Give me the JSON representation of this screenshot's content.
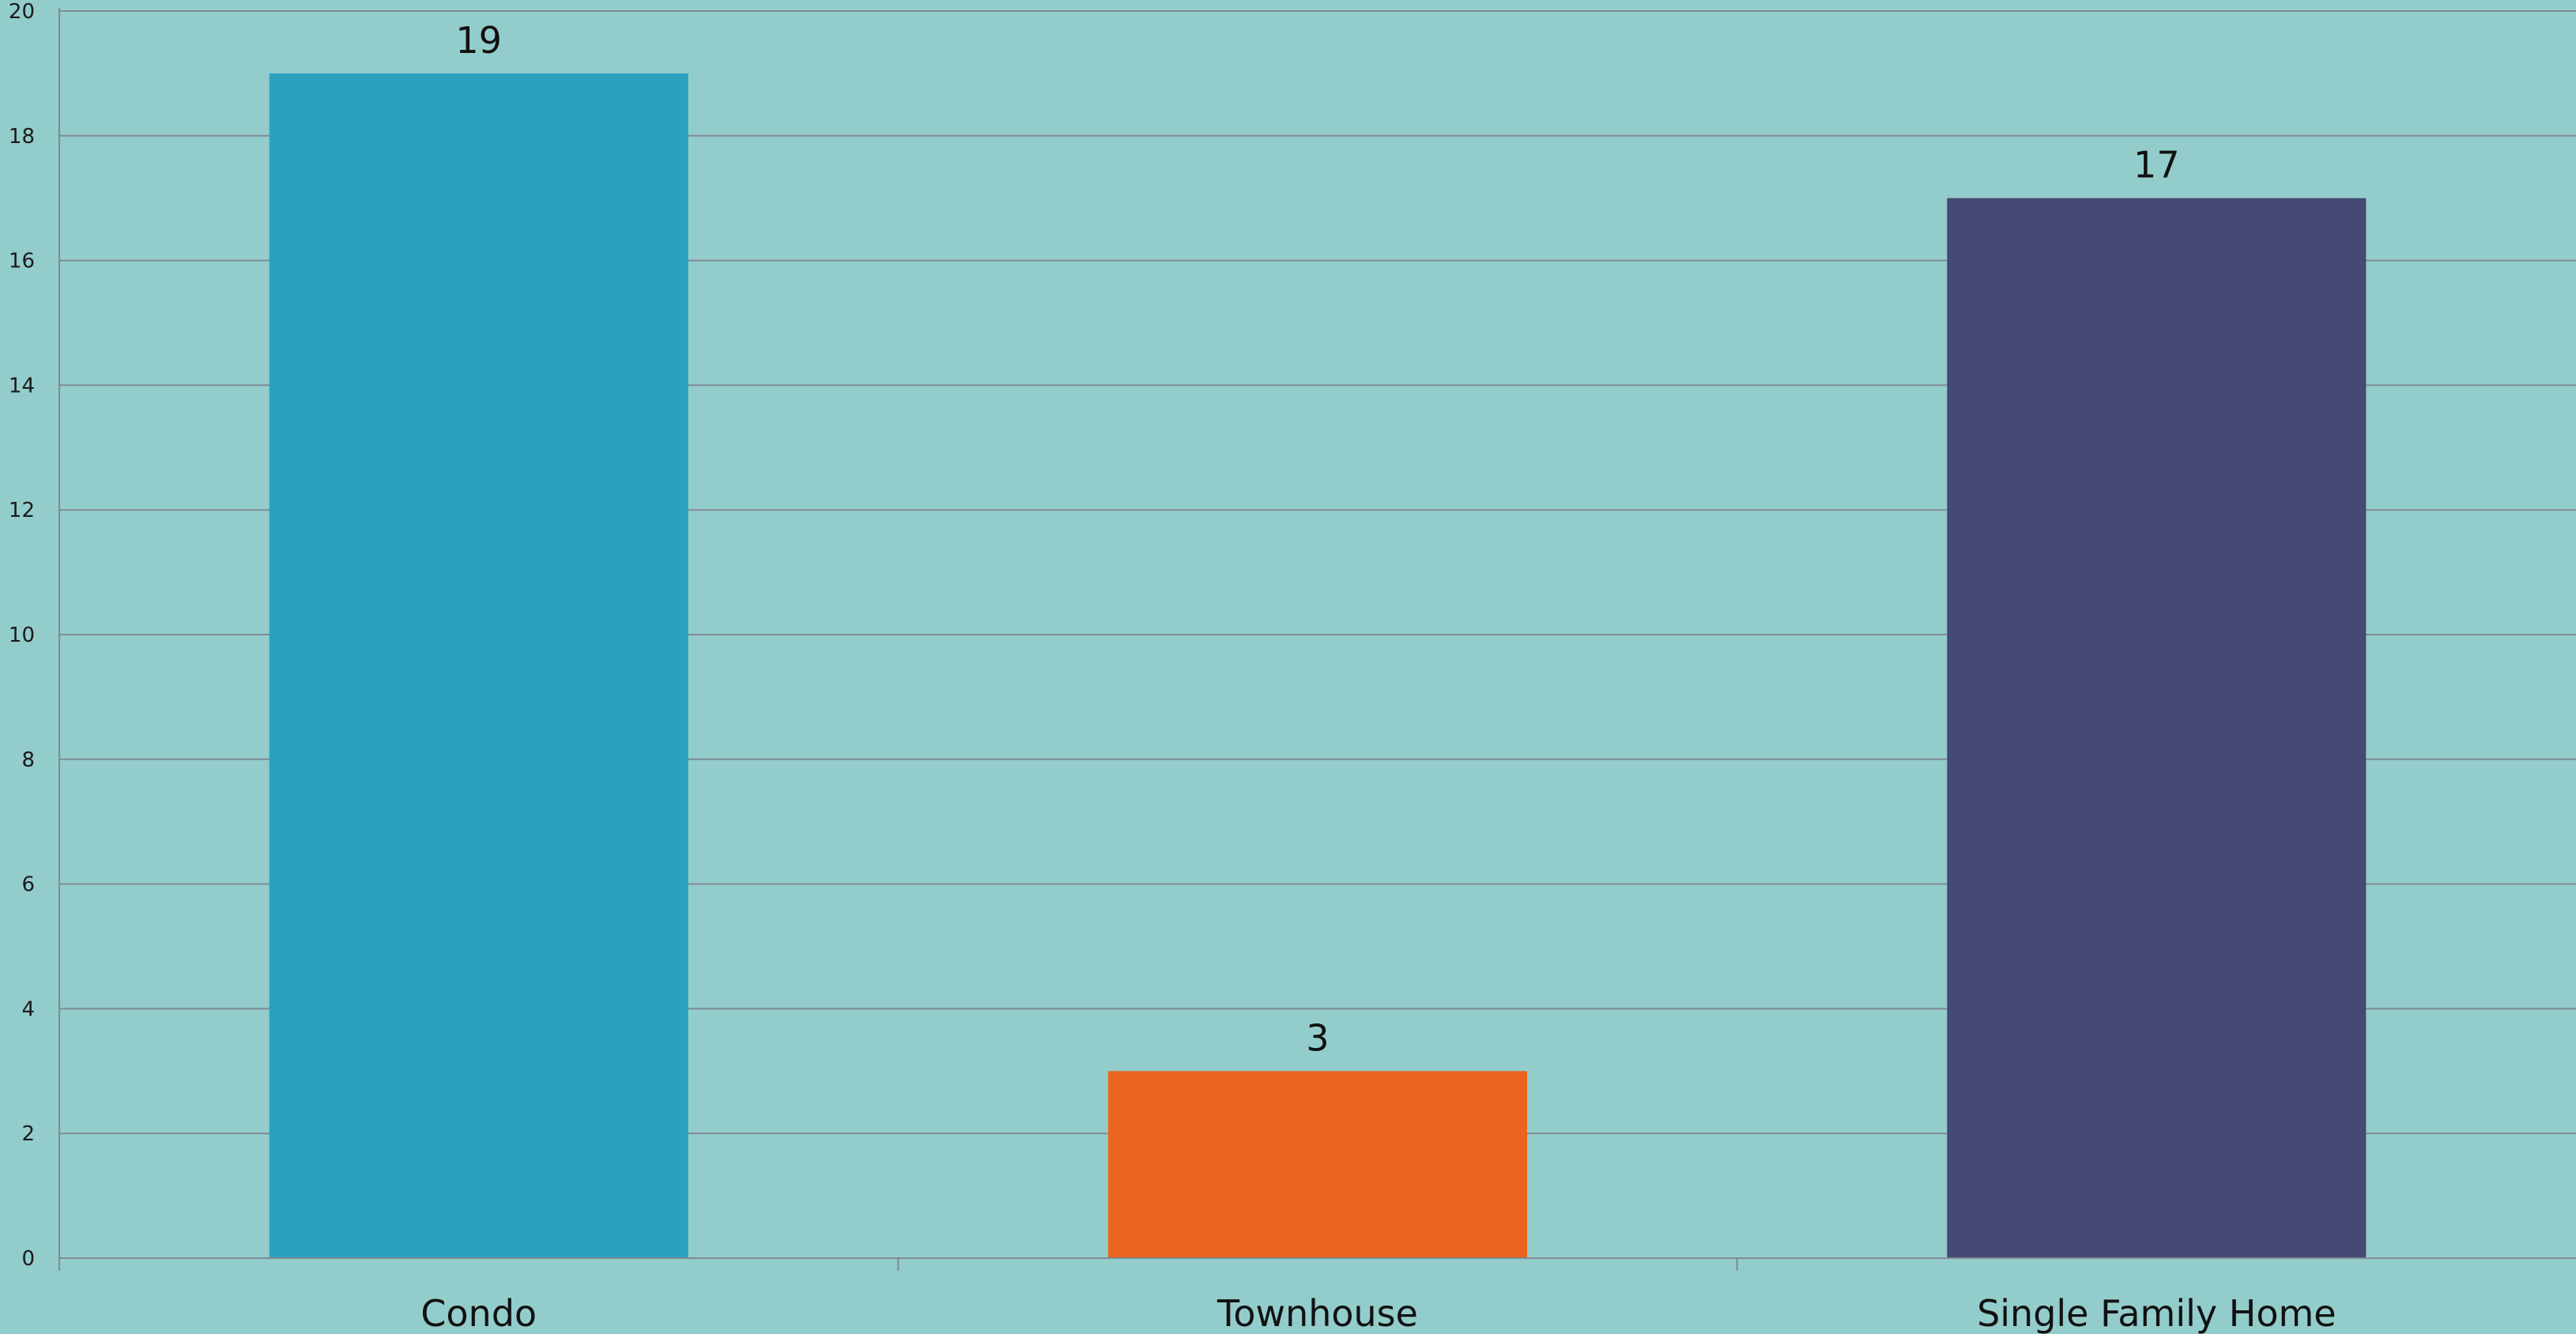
{
  "chart_data": {
    "type": "bar",
    "title": "",
    "xlabel": "",
    "ylabel": "",
    "categories": [
      "Condo",
      "Townhouse",
      "Single Family Home"
    ],
    "values": [
      19,
      3,
      17
    ],
    "bar_colors": [
      "#2ba1c0",
      "#ea631f",
      "#444a74"
    ],
    "ylim": [
      0,
      20
    ],
    "yticks": [
      0,
      2,
      4,
      6,
      8,
      10,
      12,
      14,
      16,
      18,
      20
    ],
    "data_labels": [
      "19",
      "3",
      "17"
    ],
    "grid": true,
    "legend": "none",
    "background": "#93cdcb"
  }
}
